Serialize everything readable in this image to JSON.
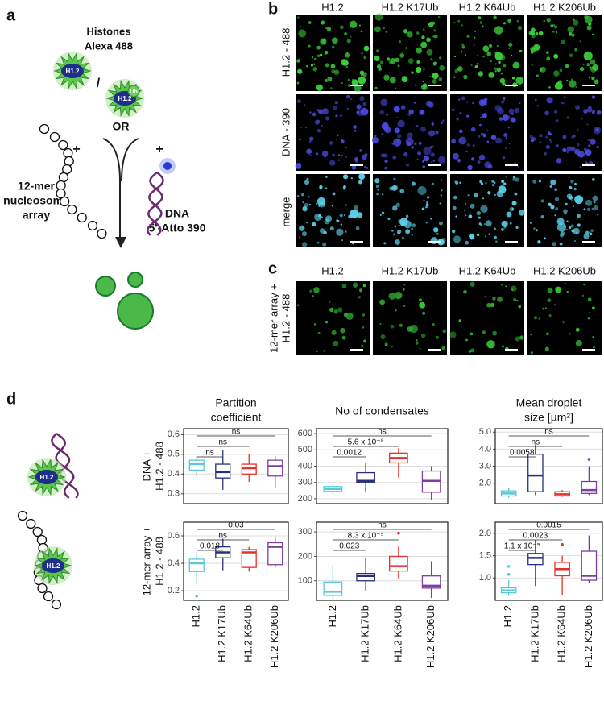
{
  "panel_labels": [
    "a",
    "b",
    "c",
    "d"
  ],
  "panel_a": {
    "histones": [
      "Histones",
      "Alexa 488"
    ],
    "protein": "H1.2",
    "slash": "/",
    "ub": "Ub",
    "protein_ub": "H1.2",
    "or": "OR",
    "plus": [
      "+",
      "+"
    ],
    "array": [
      "12-mer",
      "nucleosome",
      "array"
    ],
    "dna": [
      "DNA",
      "5'-Atto 390"
    ]
  },
  "panel_b": {
    "columns": [
      "H1.2",
      "H1.2 K17Ub",
      "H1.2 K64Ub",
      "H1.2 K206Ub"
    ],
    "rows": [
      "H1.2 - 488",
      "DNA - 390",
      "merge"
    ]
  },
  "panel_c": {
    "columns": [
      "H1.2",
      "H1.2 K17Ub",
      "H1.2 K64Ub",
      "H1.2 K206Ub"
    ],
    "row": [
      "12-mer array +",
      "H1.2 - 488"
    ]
  },
  "panel_d": {
    "columns": [
      [
        "Partition",
        "coefficient"
      ],
      [
        "No of condensates"
      ],
      [
        "Mean droplet",
        "size [µm²]"
      ]
    ],
    "rows": [
      [
        "DNA +",
        "H1.2 - 488"
      ],
      [
        "12-mer array +",
        "H1.2 - 488"
      ]
    ],
    "icon_labels": [
      "H1.2",
      "H1.2"
    ]
  },
  "chart_data": [
    {
      "type": "box",
      "colors": [
        "#5bc8d8",
        "#2a2f7a",
        "#e8302a",
        "#7b3fa0"
      ],
      "grid": true,
      "ylim": [
        0.25,
        0.63
      ],
      "yticks": [
        0.3,
        0.4,
        0.5,
        0.6
      ],
      "boxes": [
        {
          "whisker_low": 0.39,
          "q1": 0.42,
          "median": 0.45,
          "q3": 0.47,
          "whisker_high": 0.49,
          "outliers": []
        },
        {
          "whisker_low": 0.32,
          "q1": 0.38,
          "median": 0.41,
          "q3": 0.45,
          "whisker_high": 0.52,
          "outliers": []
        },
        {
          "whisker_low": 0.36,
          "q1": 0.4,
          "median": 0.43,
          "q3": 0.45,
          "whisker_high": 0.5,
          "outliers": []
        },
        {
          "whisker_low": 0.33,
          "q1": 0.39,
          "median": 0.44,
          "q3": 0.47,
          "whisker_high": 0.49,
          "outliers": []
        }
      ],
      "brackets": [
        {
          "from": 0,
          "to": 1,
          "label": "ns"
        },
        {
          "from": 0,
          "to": 2,
          "label": "ns"
        },
        {
          "from": 0,
          "to": 3,
          "label": "ns"
        }
      ]
    },
    {
      "type": "box",
      "colors": [
        "#5bc8d8",
        "#2a2f7a",
        "#e8302a",
        "#7b3fa0"
      ],
      "grid": true,
      "ylim": [
        170,
        630
      ],
      "yticks": [
        200,
        300,
        400,
        500,
        600
      ],
      "boxes": [
        {
          "whisker_low": 225,
          "q1": 245,
          "median": 260,
          "q3": 275,
          "whisker_high": 290,
          "outliers": []
        },
        {
          "whisker_low": 240,
          "q1": 300,
          "median": 310,
          "q3": 360,
          "whisker_high": 420,
          "outliers": []
        },
        {
          "whisker_low": 330,
          "q1": 420,
          "median": 450,
          "q3": 480,
          "whisker_high": 510,
          "outliers": []
        },
        {
          "whisker_low": 195,
          "q1": 240,
          "median": 310,
          "q3": 370,
          "whisker_high": 400,
          "outliers": []
        }
      ],
      "brackets": [
        {
          "from": 0,
          "to": 1,
          "label": "0.0012"
        },
        {
          "from": 0,
          "to": 2,
          "label": "5.6 x 10⁻⁸"
        },
        {
          "from": 0,
          "to": 3,
          "label": "ns"
        }
      ]
    },
    {
      "type": "box",
      "colors": [
        "#5bc8d8",
        "#2a2f7a",
        "#e8302a",
        "#7b3fa0"
      ],
      "grid": true,
      "ylim": [
        0.8,
        5.2
      ],
      "yticks": [
        {
          "value": 2,
          "label": "2.0"
        },
        {
          "value": 3,
          "label": "3.0"
        },
        {
          "value": 4,
          "label": "4.0"
        },
        {
          "value": 5,
          "label": "5.0"
        }
      ],
      "boxes": [
        {
          "whisker_low": 1.15,
          "q1": 1.25,
          "median": 1.4,
          "q3": 1.55,
          "whisker_high": 1.75,
          "outliers": []
        },
        {
          "whisker_low": 1.3,
          "q1": 1.5,
          "median": 2.45,
          "q3": 3.7,
          "whisker_high": 4.25,
          "outliers": []
        },
        {
          "whisker_low": 1.2,
          "q1": 1.25,
          "median": 1.35,
          "q3": 1.5,
          "whisker_high": 1.6,
          "outliers": []
        },
        {
          "whisker_low": 1.3,
          "q1": 1.4,
          "median": 1.6,
          "q3": 2.1,
          "whisker_high": 3.0,
          "outliers": [
            3.4
          ]
        }
      ],
      "brackets": [
        {
          "from": 0,
          "to": 1,
          "label": "0.0058"
        },
        {
          "from": 0,
          "to": 2,
          "label": "ns"
        },
        {
          "from": 0,
          "to": 3,
          "label": "ns"
        }
      ]
    },
    {
      "type": "box",
      "colors": [
        "#5bc8d8",
        "#2a2f7a",
        "#e8302a",
        "#7b3fa0"
      ],
      "grid": true,
      "ylim": [
        0.13,
        0.7
      ],
      "yticks": [
        0.2,
        0.4,
        0.6
      ],
      "categories": [
        "H1.2",
        "H1.2 K17Ub",
        "H1.2 K64Ub",
        "H1.2 K206Ub"
      ],
      "boxes": [
        {
          "whisker_low": 0.25,
          "q1": 0.34,
          "median": 0.4,
          "q3": 0.43,
          "whisker_high": 0.48,
          "outliers": [
            0.16
          ]
        },
        {
          "whisker_low": 0.35,
          "q1": 0.44,
          "median": 0.48,
          "q3": 0.52,
          "whisker_high": 0.58,
          "outliers": []
        },
        {
          "whisker_low": 0.34,
          "q1": 0.37,
          "median": 0.48,
          "q3": 0.5,
          "whisker_high": 0.52,
          "outliers": []
        },
        {
          "whisker_low": 0.37,
          "q1": 0.39,
          "median": 0.52,
          "q3": 0.55,
          "whisker_high": 0.59,
          "outliers": []
        }
      ],
      "brackets": [
        {
          "from": 0,
          "to": 1,
          "label": "0.018"
        },
        {
          "from": 0,
          "to": 2,
          "label": "ns"
        },
        {
          "from": 0,
          "to": 3,
          "label": "0.03"
        }
      ]
    },
    {
      "type": "box",
      "colors": [
        "#5bc8d8",
        "#2a2f7a",
        "#e8302a",
        "#7b3fa0"
      ],
      "grid": true,
      "ylim": [
        20,
        340
      ],
      "yticks": [
        100,
        200,
        300
      ],
      "categories": [
        "H1.2",
        "H1.2 K17Ub",
        "H1.2 K64Ub",
        "H1.2 K206Ub"
      ],
      "boxes": [
        {
          "whisker_low": 25,
          "q1": 40,
          "median": 55,
          "q3": 95,
          "whisker_high": 165,
          "outliers": []
        },
        {
          "whisker_low": 60,
          "q1": 100,
          "median": 120,
          "q3": 130,
          "whisker_high": 195,
          "outliers": []
        },
        {
          "whisker_low": 110,
          "q1": 140,
          "median": 160,
          "q3": 200,
          "whisker_high": 240,
          "outliers": [
            295
          ]
        },
        {
          "whisker_low": 30,
          "q1": 70,
          "median": 80,
          "q3": 120,
          "whisker_high": 180,
          "outliers": []
        }
      ],
      "brackets": [
        {
          "from": 0,
          "to": 1,
          "label": "0.023"
        },
        {
          "from": 0,
          "to": 2,
          "label": "8.3 x 10⁻⁵"
        },
        {
          "from": 0,
          "to": 3,
          "label": "ns"
        }
      ]
    },
    {
      "type": "box",
      "colors": [
        "#5bc8d8",
        "#2a2f7a",
        "#e8302a",
        "#7b3fa0"
      ],
      "grid": true,
      "ylim": [
        0.5,
        2.25
      ],
      "yticks": [
        {
          "value": 1,
          "label": "1.0"
        },
        1.5,
        {
          "value": 2,
          "label": "2.0"
        }
      ],
      "categories": [
        "H1.2",
        "H1.2 K17Ub",
        "H1.2 K64Ub",
        "H1.2 K206Ub"
      ],
      "boxes": [
        {
          "whisker_low": 0.6,
          "q1": 0.67,
          "median": 0.72,
          "q3": 0.78,
          "whisker_high": 0.95,
          "outliers": [
            1.08,
            1.26
          ]
        },
        {
          "whisker_low": 0.82,
          "q1": 1.3,
          "median": 1.45,
          "q3": 1.55,
          "whisker_high": 1.85,
          "outliers": []
        },
        {
          "whisker_low": 0.62,
          "q1": 1.05,
          "median": 1.2,
          "q3": 1.35,
          "whisker_high": 1.5,
          "outliers": [
            1.75
          ]
        },
        {
          "whisker_low": 0.88,
          "q1": 0.95,
          "median": 1.05,
          "q3": 1.6,
          "whisker_high": 1.95,
          "outliers": []
        }
      ],
      "brackets": [
        {
          "from": 0,
          "to": 1,
          "label": "1.1 x 10⁻⁵"
        },
        {
          "from": 0,
          "to": 2,
          "label": "0.0023"
        },
        {
          "from": 0,
          "to": 3,
          "label": "0.0015"
        }
      ]
    }
  ]
}
